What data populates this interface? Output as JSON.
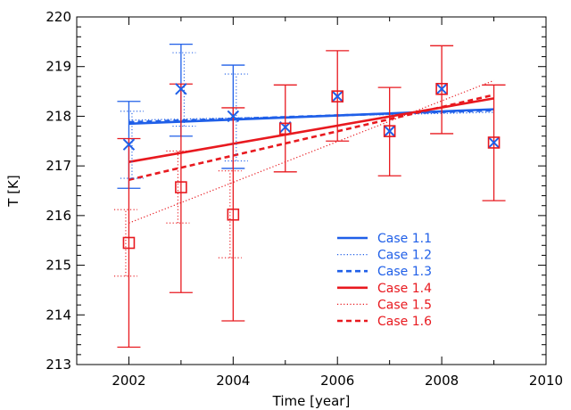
{
  "chart_data": {
    "type": "scatter",
    "xlabel": "Time [year]",
    "ylabel": "T [K]",
    "xlim": [
      2001,
      2010
    ],
    "ylim": [
      213,
      220
    ],
    "xticks": [
      "2002",
      "2004",
      "2006",
      "2008",
      "2010"
    ],
    "yticks": [
      "213",
      "214",
      "215",
      "216",
      "217",
      "218",
      "219",
      "220"
    ],
    "grid": false,
    "legend_position": "bottom-center",
    "colors": {
      "blue": "#1f5fe8",
      "red": "#e8191f"
    },
    "points": [
      {
        "name": "blue-x",
        "marker": "x",
        "color": "blue",
        "x": [
          2002,
          2003,
          2004,
          2005,
          2006,
          2007,
          2008,
          2009
        ],
        "y": [
          217.43,
          218.55,
          218.0,
          217.78,
          218.4,
          217.7,
          218.55,
          217.47
        ]
      },
      {
        "name": "red-square",
        "marker": "square",
        "color": "red",
        "x": [
          2002,
          2003,
          2004,
          2005,
          2006,
          2007,
          2008,
          2009
        ],
        "y": [
          215.45,
          216.57,
          216.02,
          217.75,
          218.4,
          217.7,
          218.55,
          217.47
        ]
      }
    ],
    "errorbars": [
      {
        "color": "blue",
        "style": "solid",
        "x_offset": 0.0,
        "x": [
          2002,
          2003,
          2004
        ],
        "low": [
          216.55,
          217.6,
          216.95
        ],
        "high": [
          218.3,
          219.45,
          219.03
        ]
      },
      {
        "color": "blue",
        "style": "dotted",
        "x_offset": 0.06,
        "x": [
          2002,
          2003,
          2004
        ],
        "low": [
          216.75,
          217.8,
          217.1
        ],
        "high": [
          218.1,
          219.28,
          218.85
        ]
      },
      {
        "color": "red",
        "style": "solid",
        "x_offset": 0.0,
        "x": [
          2002,
          2003,
          2004,
          2005,
          2006,
          2007,
          2008,
          2009
        ],
        "low": [
          213.35,
          214.45,
          213.88,
          216.88,
          217.5,
          216.8,
          217.65,
          216.3
        ],
        "high": [
          217.55,
          218.65,
          218.17,
          218.63,
          219.32,
          218.58,
          219.42,
          218.63
        ]
      },
      {
        "color": "red",
        "style": "dotted",
        "x_offset": -0.06,
        "x": [
          2002,
          2003,
          2004
        ],
        "low": [
          214.78,
          215.85,
          215.15
        ],
        "high": [
          216.12,
          217.3,
          216.9
        ]
      }
    ],
    "series": [
      {
        "name": "Case 1.1",
        "color": "blue",
        "style": "solid",
        "x": [
          2002,
          2009
        ],
        "y": [
          217.85,
          218.14
        ]
      },
      {
        "name": "Case 1.2",
        "color": "blue",
        "style": "dotted",
        "x": [
          2002,
          2009
        ],
        "y": [
          217.92,
          218.08
        ]
      },
      {
        "name": "Case 1.3",
        "color": "blue",
        "style": "dashed",
        "x": [
          2002,
          2009
        ],
        "y": [
          217.88,
          218.12
        ]
      },
      {
        "name": "Case 1.4",
        "color": "red",
        "style": "solid",
        "x": [
          2002,
          2009
        ],
        "y": [
          217.08,
          218.36
        ]
      },
      {
        "name": "Case 1.5",
        "color": "red",
        "style": "dotted",
        "x": [
          2002,
          2009
        ],
        "y": [
          215.85,
          218.72
        ]
      },
      {
        "name": "Case 1.6",
        "color": "red",
        "style": "dashed",
        "x": [
          2002,
          2009
        ],
        "y": [
          216.72,
          218.43
        ]
      }
    ]
  }
}
